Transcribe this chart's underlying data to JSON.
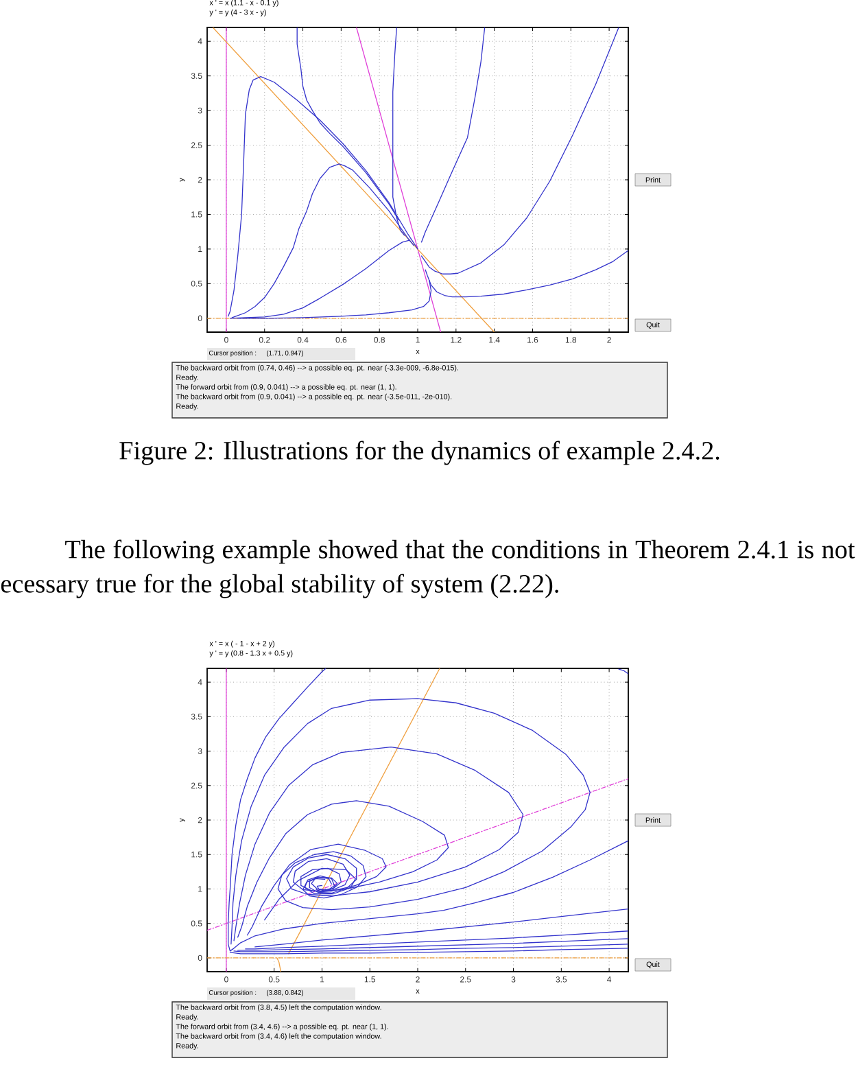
{
  "chart_data": [
    {
      "type": "line",
      "title": "x ' = x (1.1 - x - 0.1 y)",
      "subtitle": "y ' = y (4 - 3 x - y)",
      "xlabel": "x",
      "ylabel": "y",
      "xlim": [
        -0.1,
        2.1
      ],
      "ylim": [
        -0.2,
        4.2
      ],
      "xticks": [
        0,
        0.2,
        0.4,
        0.6,
        0.8,
        1,
        1.2,
        1.4,
        1.6,
        1.8,
        2
      ],
      "yticks": [
        0,
        0.5,
        1,
        1.5,
        2,
        2.5,
        3,
        3.5,
        4
      ],
      "grid": true,
      "series": [
        {
          "color": "#e040d8",
          "x": [
            0,
            0
          ],
          "values": [
            -0.2,
            4.2
          ]
        },
        {
          "color": "#e040d8",
          "x": [
            0.68,
            1.12
          ],
          "values": [
            4.2,
            -0.2
          ]
        },
        {
          "color": "#f0a040",
          "line_style": "dashed",
          "x": [
            -0.1,
            2.1
          ],
          "values": [
            0,
            0
          ]
        },
        {
          "color": "#f0a040",
          "x": [
            -0.07,
            1.4
          ],
          "values": [
            4.2,
            -0.2
          ]
        },
        {
          "color": "#3434cc",
          "x": [
            0.01,
            0.02,
            0.04,
            0.06,
            0.08,
            0.09,
            0.1,
            0.12,
            0.14,
            0.18,
            0.25,
            0.37,
            0.49,
            0.61,
            0.73,
            0.85,
            0.95,
            1.0
          ],
          "values": [
            0.03,
            0.1,
            0.4,
            0.9,
            1.5,
            2.2,
            2.95,
            3.3,
            3.44,
            3.49,
            3.41,
            3.15,
            2.86,
            2.52,
            2.13,
            1.67,
            1.21,
            1.0
          ]
        },
        {
          "color": "#3434cc",
          "x": [
            0.03,
            0.05,
            0.1,
            0.15,
            0.2,
            0.25,
            0.3,
            0.35,
            0.38,
            0.42,
            0.45,
            0.49,
            0.54,
            0.59,
            0.62,
            0.66,
            0.75,
            0.85,
            0.95,
            0.98
          ],
          "values": [
            0.01,
            0.03,
            0.08,
            0.17,
            0.3,
            0.5,
            0.75,
            1.02,
            1.3,
            1.55,
            1.8,
            2.02,
            2.18,
            2.23,
            2.2,
            2.14,
            1.88,
            1.55,
            1.15,
            1.05
          ]
        },
        {
          "color": "#3434cc",
          "x": [
            0.02,
            0.1,
            0.2,
            0.3,
            0.4,
            0.49,
            0.61,
            0.73,
            0.85,
            0.92,
            0.96
          ],
          "values": [
            0,
            0.01,
            0.02,
            0.06,
            0.15,
            0.29,
            0.49,
            0.72,
            0.98,
            1.1,
            1.13
          ]
        },
        {
          "color": "#3434cc",
          "x": [
            0.06,
            0.2,
            0.4,
            0.6,
            0.73,
            0.85,
            0.97,
            1.03,
            1.06,
            1.07,
            1.06
          ],
          "values": [
            0,
            0,
            0.01,
            0.03,
            0.05,
            0.08,
            0.12,
            0.17,
            0.25,
            0.4,
            0.55
          ]
        },
        {
          "color": "#3434cc",
          "x": [
            0.89,
            0.88,
            0.87,
            0.87,
            0.87,
            0.87,
            0.87,
            0.89,
            0.91,
            0.93
          ],
          "values": [
            4.2,
            3.8,
            3.27,
            2.8,
            2.41,
            2.0,
            1.75,
            1.45,
            1.27,
            1.2
          ]
        },
        {
          "color": "#3434cc",
          "x": [
            0.37,
            0.37,
            0.39,
            0.4,
            0.42,
            0.45,
            0.49,
            0.54,
            0.61,
            0.73,
            0.85,
            0.9
          ],
          "values": [
            4.2,
            3.96,
            3.6,
            3.35,
            3.15,
            3.0,
            2.82,
            2.67,
            2.48,
            2.1,
            1.65,
            1.42
          ]
        },
        {
          "color": "#3434cc",
          "x": [
            1.02,
            1.03,
            1.06,
            1.09,
            1.13,
            1.17,
            1.21,
            1.33,
            1.45,
            1.57,
            1.69,
            1.81,
            1.93,
            2.05
          ],
          "values": [
            0.9,
            0.86,
            0.74,
            0.68,
            0.64,
            0.64,
            0.65,
            0.8,
            1.06,
            1.45,
            1.98,
            2.65,
            3.38,
            4.2
          ]
        },
        {
          "color": "#3434cc",
          "x": [
            1.04,
            1.05,
            1.07,
            1.1,
            1.14,
            1.18,
            1.25,
            1.33,
            1.45,
            1.57,
            1.69,
            1.81,
            1.93,
            2.02,
            2.1
          ],
          "values": [
            0.7,
            0.62,
            0.48,
            0.38,
            0.33,
            0.31,
            0.31,
            0.32,
            0.35,
            0.41,
            0.48,
            0.57,
            0.7,
            0.82,
            0.98
          ]
        },
        {
          "color": "#3434cc",
          "x": [
            1.02,
            1.04,
            1.11,
            1.18,
            1.26,
            1.3,
            1.33,
            1.35
          ],
          "values": [
            1.1,
            1.25,
            1.68,
            2.12,
            2.61,
            3.2,
            3.7,
            4.2
          ]
        }
      ],
      "annotations": [
        "Cursor position :",
        "(1.71, 0.947)",
        "The backward orbit from (0.74, 0.46) --> a possible eq. pt. near (-3.3e-009, -6.8e-015).",
        "Ready.",
        "The forward orbit from (0.9, 0.041) --> a possible eq. pt. near (1, 1).",
        "The backward orbit from (0.9, 0.041) --> a possible eq. pt. near (-3.5e-011, -2e-010).",
        "Ready.",
        "Print",
        "Quit",
        "Figure 2: Illustrations for the dynamics of example 2.4.2."
      ]
    },
    {
      "type": "line",
      "title": "x ' = x ( - 1 - x + 2 y)",
      "subtitle": "y ' = y (0.8 - 1.3 x + 0.5 y)",
      "xlabel": "x",
      "ylabel": "y",
      "xlim": [
        -0.2,
        4.2
      ],
      "ylim": [
        -0.2,
        4.2
      ],
      "xticks": [
        0,
        0.5,
        1,
        1.5,
        2,
        2.5,
        3,
        3.5,
        4
      ],
      "yticks": [
        0,
        0.5,
        1,
        1.5,
        2,
        2.5,
        3,
        3.5,
        4
      ],
      "grid": true,
      "series": [
        {
          "color": "#e040d8",
          "x": [
            0,
            0
          ],
          "values": [
            -0.2,
            4.2
          ]
        },
        {
          "color": "#e040d8",
          "line_style": "dashed",
          "x": [
            -0.2,
            4.2
          ],
          "values": [
            0.4,
            2.6
          ]
        },
        {
          "color": "#f0a040",
          "line_style": "dashed",
          "x": [
            -0.2,
            4.2
          ],
          "values": [
            0,
            0
          ]
        },
        {
          "color": "#f0a040",
          "x": [
            0.65,
            2.23
          ],
          "values": [
            0.06,
            4.2
          ]
        },
        {
          "color": "#f0a040",
          "x": [
            0.53,
            0.55,
            0.57
          ],
          "values": [
            0,
            -0.06,
            -0.2
          ]
        },
        {
          "color": "#3434cc",
          "x": [
            4.2,
            3.8,
            3.41,
            3.0,
            2.6,
            2.27,
            2.0,
            1.5,
            1.0,
            0.6,
            0.3,
            0.15,
            0.08,
            0.04,
            0.02,
            0.02,
            0.03,
            0.04,
            0.06,
            0.1,
            0.15,
            0.22,
            0.3,
            0.41,
            0.55,
            0.7,
            0.85,
            1.0,
            1.04
          ],
          "values": [
            1.7,
            1.42,
            1.17,
            0.95,
            0.8,
            0.69,
            0.64,
            0.57,
            0.5,
            0.42,
            0.32,
            0.22,
            0.14,
            0.1,
            0.2,
            0.5,
            0.8,
            1.0,
            1.5,
            1.93,
            2.3,
            2.6,
            2.9,
            3.2,
            3.47,
            3.7,
            3.93,
            4.15,
            4.2
          ]
        },
        {
          "color": "#3434cc",
          "x": [
            4.2,
            3.5,
            3.0,
            2.5,
            2.0,
            1.5,
            1.0,
            0.6,
            0.3,
            0.15,
            0.04
          ],
          "values": [
            0.14,
            0.12,
            0.1,
            0.09,
            0.08,
            0.07,
            0.07,
            0.06,
            0.06,
            0.06,
            0.08
          ]
        },
        {
          "color": "#3434cc",
          "x": [
            4.2,
            3.5,
            3.0,
            2.5,
            2.0,
            1.5,
            1.0,
            0.6,
            0.3,
            0.15,
            0.08
          ],
          "values": [
            0.2,
            0.17,
            0.15,
            0.14,
            0.12,
            0.11,
            0.1,
            0.09,
            0.09,
            0.09,
            0.1
          ]
        },
        {
          "color": "#3434cc",
          "x": [
            4.2,
            3.5,
            3.0,
            2.5,
            2.0,
            1.5,
            1.0,
            0.6,
            0.3,
            0.12
          ],
          "values": [
            0.28,
            0.24,
            0.21,
            0.19,
            0.17,
            0.15,
            0.13,
            0.12,
            0.11,
            0.11
          ]
        },
        {
          "color": "#3434cc",
          "x": [
            4.2,
            3.5,
            3.0,
            2.5,
            2.0,
            1.5,
            1.0,
            0.6,
            0.3,
            0.2
          ],
          "values": [
            0.39,
            0.33,
            0.29,
            0.26,
            0.23,
            0.2,
            0.17,
            0.15,
            0.13,
            0.13
          ]
        },
        {
          "color": "#3434cc",
          "x": [
            4.2,
            3.5,
            3.0,
            2.5,
            2.0,
            1.5,
            1.0,
            0.6,
            0.3
          ],
          "values": [
            0.71,
            0.6,
            0.52,
            0.45,
            0.38,
            0.32,
            0.26,
            0.2,
            0.16
          ]
        },
        {
          "color": "#3434cc",
          "x": [
            0.05,
            0.06,
            0.07,
            0.1,
            0.16,
            0.26,
            0.4,
            0.6,
            0.85,
            1.1,
            1.5,
            2.0,
            2.4,
            2.8,
            3.2,
            3.55,
            3.73,
            3.8,
            3.75,
            3.6,
            3.3,
            2.9,
            2.5,
            2.0,
            1.5,
            1.1,
            0.8,
            0.62,
            0.54,
            0.58,
            0.72,
            0.92,
            1.12,
            1.3,
            1.43,
            1.46,
            1.37,
            1.2,
            1.02,
            0.87,
            0.8,
            0.84,
            0.96,
            1.1,
            1.16,
            1.11,
            1.0,
            0.94
          ],
          "values": [
            0.2,
            0.45,
            0.8,
            1.2,
            1.7,
            2.2,
            2.65,
            3.05,
            3.4,
            3.62,
            3.74,
            3.76,
            3.7,
            3.55,
            3.3,
            2.95,
            2.65,
            2.4,
            2.15,
            1.9,
            1.55,
            1.25,
            1.02,
            0.85,
            0.74,
            0.7,
            0.73,
            0.83,
            1.0,
            1.2,
            1.38,
            1.5,
            1.54,
            1.48,
            1.34,
            1.18,
            1.03,
            0.92,
            0.87,
            0.9,
            0.99,
            1.1,
            1.17,
            1.16,
            1.08,
            1.0,
            0.96,
            0.99
          ]
        },
        {
          "color": "#3434cc",
          "x": [
            0.08,
            0.1,
            0.14,
            0.2,
            0.3,
            0.45,
            0.65,
            0.9,
            1.2,
            1.72,
            2.2,
            2.6,
            2.95,
            3.1,
            3.05,
            2.85,
            2.5,
            2.0,
            1.5,
            1.1,
            0.85,
            0.68,
            0.63,
            0.7,
            0.86,
            1.05,
            1.24,
            1.36,
            1.36,
            1.26,
            1.1,
            0.96,
            0.87,
            0.87,
            0.96,
            1.07,
            1.1
          ],
          "values": [
            0.25,
            0.45,
            0.8,
            1.2,
            1.65,
            2.1,
            2.5,
            2.8,
            2.98,
            3.06,
            2.96,
            2.72,
            2.4,
            2.08,
            1.82,
            1.57,
            1.32,
            1.1,
            0.96,
            0.9,
            0.92,
            1.0,
            1.15,
            1.32,
            1.45,
            1.5,
            1.44,
            1.3,
            1.14,
            1.01,
            0.94,
            0.95,
            1.02,
            1.11,
            1.17,
            1.15,
            1.07
          ]
        },
        {
          "color": "#3434cc",
          "x": [
            0.12,
            0.16,
            0.22,
            0.32,
            0.45,
            0.62,
            0.85,
            1.1,
            1.36,
            1.7,
            2.05,
            2.28,
            2.32,
            2.2,
            1.95,
            1.6,
            1.25,
            1.0,
            0.8,
            0.7,
            0.72,
            0.86,
            1.05,
            1.22,
            1.29,
            1.24,
            1.1,
            0.95,
            0.89,
            0.93,
            1.03
          ],
          "values": [
            0.3,
            0.45,
            0.75,
            1.1,
            1.45,
            1.8,
            2.08,
            2.23,
            2.28,
            2.2,
            1.98,
            1.78,
            1.6,
            1.42,
            1.25,
            1.1,
            1.0,
            0.96,
            0.99,
            1.1,
            1.26,
            1.4,
            1.44,
            1.36,
            1.2,
            1.06,
            0.98,
            1.0,
            1.08,
            1.15,
            1.14
          ]
        },
        {
          "color": "#3434cc",
          "x": [
            0.22,
            0.27,
            0.37,
            0.5,
            0.66,
            0.88,
            1.17,
            1.45,
            1.63,
            1.67,
            1.57,
            1.35,
            1.1,
            0.9,
            0.78,
            0.78,
            0.9,
            1.06,
            1.18,
            1.2,
            1.12,
            1.0
          ],
          "values": [
            0.33,
            0.45,
            0.75,
            1.05,
            1.35,
            1.57,
            1.65,
            1.56,
            1.44,
            1.32,
            1.18,
            1.05,
            0.97,
            0.97,
            1.05,
            1.18,
            1.28,
            1.3,
            1.22,
            1.1,
            1.01,
            0.98
          ]
        },
        {
          "color": "#3434cc",
          "x": [
            0.4,
            0.55,
            0.75,
            1.0,
            1.25,
            1.35,
            1.3,
            1.12,
            0.92,
            0.82,
            0.85,
            0.98,
            1.1,
            1.13,
            1.06,
            0.97,
            0.95,
            1.0
          ],
          "values": [
            0.55,
            0.85,
            1.12,
            1.3,
            1.28,
            1.15,
            1.02,
            0.93,
            0.93,
            1.02,
            1.13,
            1.19,
            1.15,
            1.05,
            0.98,
            0.99,
            1.04,
            1.05
          ]
        },
        {
          "color": "#3434cc",
          "x": [
            4.1,
            4.15,
            4.2
          ],
          "values": [
            4.19,
            4.17,
            4.12
          ]
        }
      ],
      "annotations": [
        "The following example showed that the conditions in Theorem 2.4.1 is not",
        "ecessary true for the global stability of system (2.22).",
        "Cursor position :",
        "(3.88, 0.842)",
        "The backward orbit from (3.8, 4.5) left the computation window.",
        "Ready.",
        "The forward orbit from (3.4, 4.6) --> a possible eq. pt. near (1, 1).",
        "The backward orbit from (3.4, 4.6) left the computation window.",
        "Ready.",
        "Print",
        "Quit"
      ]
    }
  ]
}
